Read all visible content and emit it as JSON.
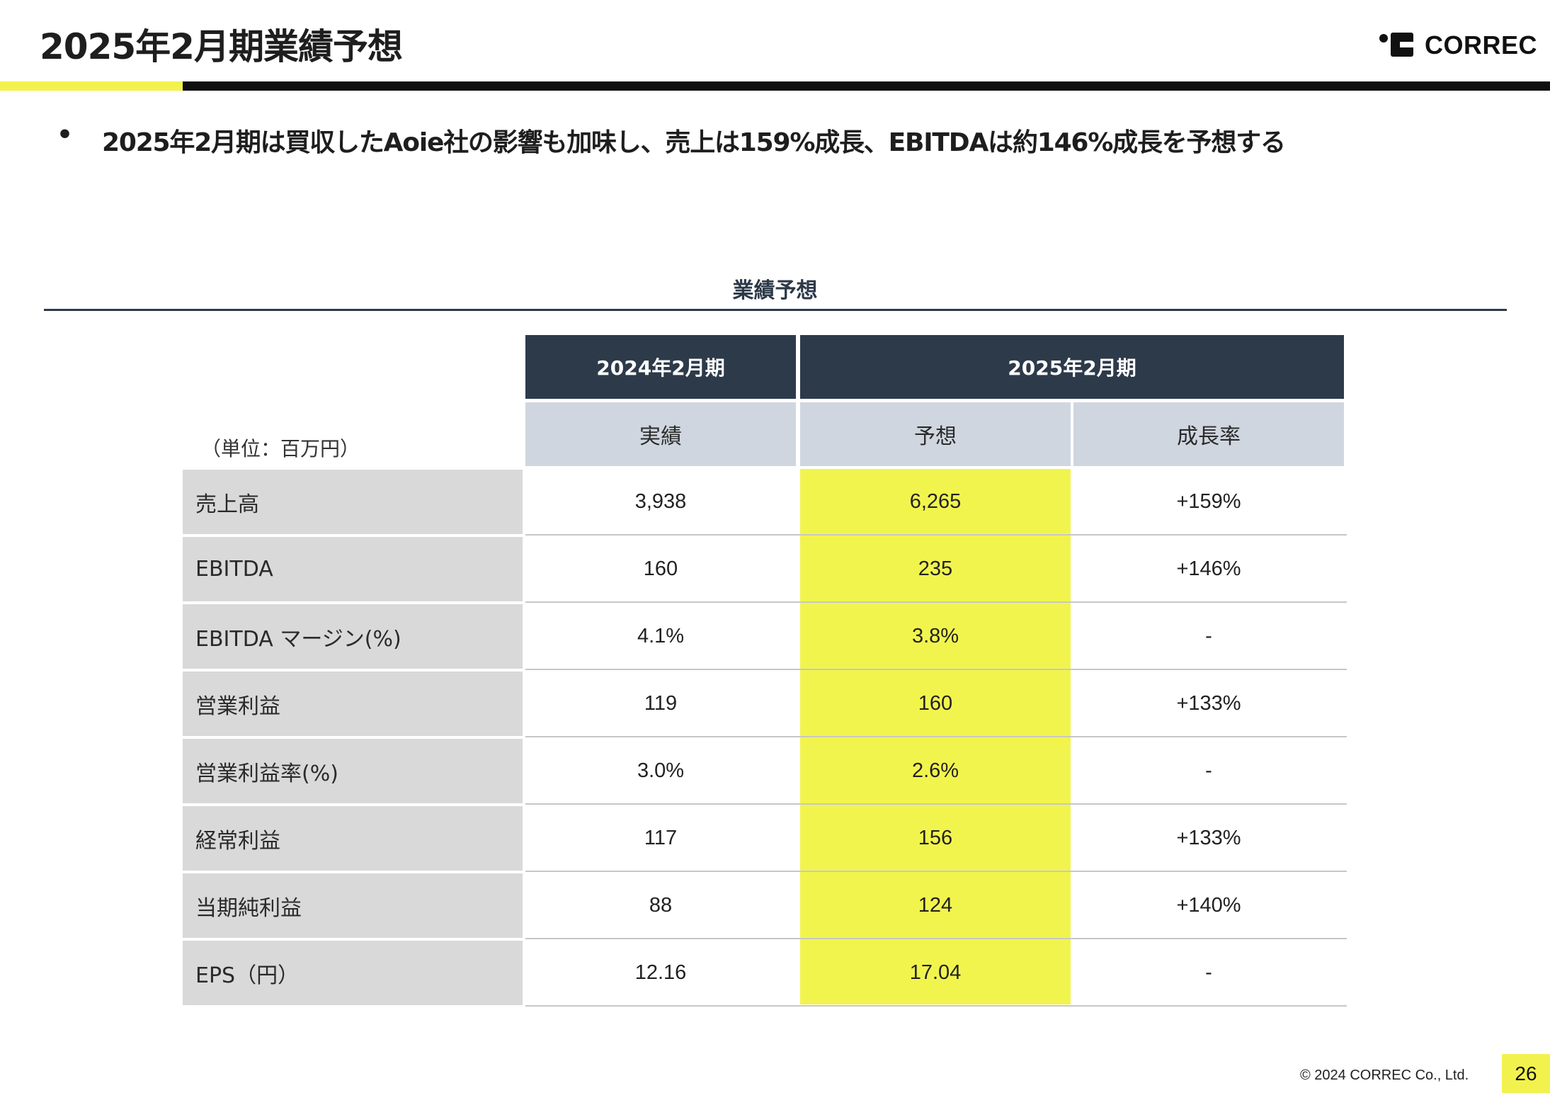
{
  "page": {
    "title": "2025年2月期業績予想",
    "logo_text": "CORREC",
    "summary": "2025年2月期は買収したAoie社の影響も加味し、売上は159%成長、EBITDAは約146%成長を予想する",
    "bullet": "•",
    "copyright": "© 2024 CORREC Co., Ltd.",
    "page_number": "26",
    "colors": {
      "accent_yellow": "#f2f24e",
      "header_navy": "#2d3a4a",
      "subheader_gray": "#d0d6e0",
      "label_gray": "#d9d9d9"
    }
  },
  "table": {
    "caption": "業績予想",
    "unit": "（単位：百万円）",
    "period_headers": [
      "2024年2月期",
      "2025年2月期"
    ],
    "column_headers": [
      "実績",
      "予想",
      "成長率"
    ],
    "rows": [
      {
        "label": "売上高",
        "actual": "3,938",
        "forecast": "6,265",
        "growth": "+159%"
      },
      {
        "label": "EBITDA",
        "actual": "160",
        "forecast": "235",
        "growth": "+146%"
      },
      {
        "label": "EBITDA マージン(%)",
        "actual": "4.1%",
        "forecast": "3.8%",
        "growth": "-"
      },
      {
        "label": "営業利益",
        "actual": "119",
        "forecast": "160",
        "growth": "+133%"
      },
      {
        "label": "営業利益率(%)",
        "actual": "3.0%",
        "forecast": "2.6%",
        "growth": "-"
      },
      {
        "label": "経常利益",
        "actual": "117",
        "forecast": "156",
        "growth": "+133%"
      },
      {
        "label": "当期純利益",
        "actual": "88",
        "forecast": "124",
        "growth": "+140%"
      },
      {
        "label": "EPS（円）",
        "actual": "12.16",
        "forecast": "17.04",
        "growth": "-"
      }
    ]
  }
}
